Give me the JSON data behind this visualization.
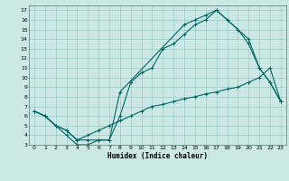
{
  "xlabel": "Humidex (Indice chaleur)",
  "bg_color": "#cce8e4",
  "line_color": "#006666",
  "grid_color": "#99cccc",
  "xlim": [
    -0.5,
    23.5
  ],
  "ylim": [
    3,
    17.5
  ],
  "xticks": [
    0,
    1,
    2,
    3,
    4,
    5,
    6,
    7,
    8,
    9,
    10,
    11,
    12,
    13,
    14,
    15,
    16,
    17,
    18,
    19,
    20,
    21,
    22,
    23
  ],
  "yticks": [
    3,
    4,
    5,
    6,
    7,
    8,
    9,
    10,
    11,
    12,
    13,
    14,
    15,
    16,
    17
  ],
  "line1": {
    "x": [
      0,
      1,
      2,
      3,
      4,
      5,
      6,
      7,
      8,
      9,
      10,
      11,
      12,
      13,
      14,
      15,
      16,
      17,
      18,
      19,
      20,
      21,
      22,
      23
    ],
    "y": [
      6.5,
      6.0,
      5.0,
      4.5,
      3.5,
      3.5,
      3.5,
      3.5,
      6.0,
      9.5,
      10.5,
      11.0,
      13.0,
      13.5,
      14.5,
      15.5,
      16.0,
      17.0,
      16.0,
      15.0,
      13.5,
      11.0,
      9.5,
      7.5
    ]
  },
  "line2": {
    "x": [
      0,
      1,
      2,
      3,
      4,
      5,
      6,
      7,
      8,
      14,
      15,
      16,
      17,
      18,
      19,
      20,
      21,
      22,
      23
    ],
    "y": [
      6.5,
      6.0,
      5.0,
      4.0,
      3.0,
      3.0,
      3.5,
      3.5,
      8.5,
      15.5,
      16.0,
      16.5,
      17.0,
      16.0,
      15.0,
      14.0,
      11.0,
      9.5,
      7.5
    ]
  },
  "line3": {
    "x": [
      0,
      1,
      2,
      3,
      4,
      5,
      6,
      7,
      8,
      9,
      10,
      11,
      12,
      13,
      14,
      15,
      16,
      17,
      18,
      19,
      20,
      21,
      22,
      23
    ],
    "y": [
      6.5,
      6.0,
      5.0,
      4.5,
      3.5,
      4.0,
      4.5,
      5.0,
      5.5,
      6.0,
      6.5,
      7.0,
      7.2,
      7.5,
      7.8,
      8.0,
      8.3,
      8.5,
      8.8,
      9.0,
      9.5,
      10.0,
      11.0,
      7.5
    ]
  }
}
